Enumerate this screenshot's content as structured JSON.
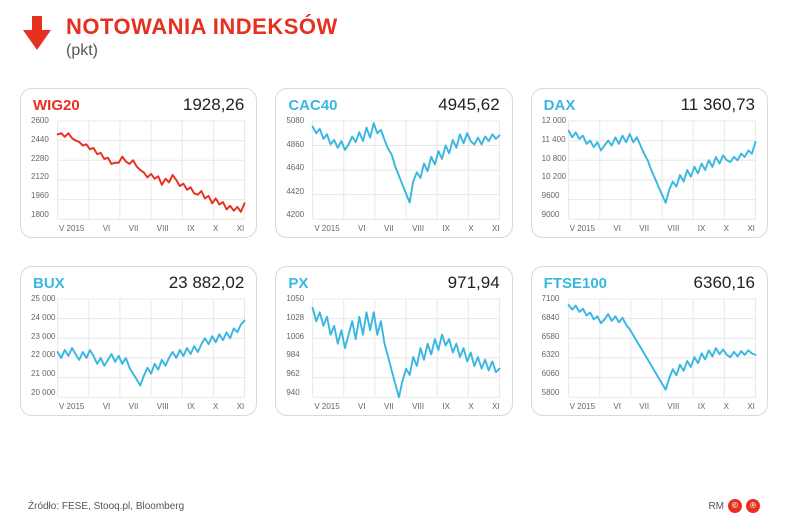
{
  "header": {
    "title": "NOTOWANIA INDEKSÓW",
    "subtitle": "(pkt)",
    "title_color": "#e63020",
    "title_fontsize": 22,
    "subtitle_color": "#555555",
    "arrow_color": "#e63020"
  },
  "layout": {
    "cols": 3,
    "rows": 2,
    "card_bg": "#ffffff",
    "card_border": "#d9d9d9",
    "card_radius": 12,
    "grid_color": "#e7e7e7",
    "axis_text_color": "#666666",
    "axis_fontsize": 8
  },
  "x_axis": {
    "labels": [
      "V 2015",
      "VI",
      "VII",
      "VIII",
      "IX",
      "X",
      "XI"
    ]
  },
  "charts": [
    {
      "name": "WIG20",
      "value": "1928,26",
      "name_color": "#e63020",
      "line_color": "#e63020",
      "line_width": 2,
      "ylim": [
        1800,
        2600
      ],
      "yticks": [
        2600,
        2440,
        2280,
        2120,
        1960,
        1800
      ],
      "data": [
        2490,
        2500,
        2470,
        2500,
        2460,
        2440,
        2430,
        2400,
        2410,
        2370,
        2380,
        2330,
        2340,
        2290,
        2300,
        2250,
        2260,
        2260,
        2310,
        2270,
        2250,
        2280,
        2230,
        2200,
        2180,
        2140,
        2170,
        2130,
        2150,
        2080,
        2130,
        2100,
        2160,
        2120,
        2070,
        2090,
        2040,
        2060,
        2010,
        2000,
        2030,
        1970,
        1990,
        1930,
        1970,
        1920,
        1940,
        1880,
        1910,
        1870,
        1900,
        1860,
        1930
      ]
    },
    {
      "name": "CAC40",
      "value": "4945,62",
      "name_color": "#3ab7e0",
      "line_color": "#3ab7e0",
      "line_width": 2,
      "ylim": [
        4200,
        5080
      ],
      "yticks": [
        5080,
        4860,
        4640,
        4420,
        4200
      ],
      "data": [
        5030,
        4970,
        5010,
        4920,
        4960,
        4870,
        4910,
        4840,
        4900,
        4820,
        4870,
        4940,
        4890,
        4980,
        4900,
        5020,
        4930,
        5060,
        4970,
        5000,
        4910,
        4830,
        4780,
        4670,
        4590,
        4510,
        4430,
        4350,
        4540,
        4620,
        4570,
        4700,
        4630,
        4760,
        4690,
        4810,
        4740,
        4860,
        4790,
        4910,
        4840,
        4960,
        4880,
        4970,
        4900,
        4870,
        4930,
        4870,
        4940,
        4900,
        4960,
        4920,
        4950
      ]
    },
    {
      "name": "DAX",
      "value": "11 360,73",
      "name_color": "#3ab7e0",
      "line_color": "#3ab7e0",
      "line_width": 2,
      "ylim": [
        9000,
        12000
      ],
      "yticks": [
        12000,
        11400,
        10800,
        10200,
        9600,
        9000
      ],
      "data": [
        11700,
        11500,
        11650,
        11450,
        11550,
        11300,
        11400,
        11200,
        11350,
        11100,
        11250,
        11400,
        11250,
        11500,
        11300,
        11550,
        11350,
        11600,
        11350,
        11500,
        11250,
        11000,
        10800,
        10500,
        10250,
        10000,
        9750,
        9500,
        9900,
        10150,
        10000,
        10350,
        10150,
        10500,
        10300,
        10600,
        10400,
        10700,
        10500,
        10800,
        10600,
        10900,
        10700,
        10950,
        10800,
        10750,
        10900,
        10800,
        11000,
        10900,
        11100,
        11000,
        11360
      ]
    },
    {
      "name": "BUX",
      "value": "23 882,02",
      "name_color": "#3ab7e0",
      "line_color": "#3ab7e0",
      "line_width": 2,
      "ylim": [
        20000,
        25000
      ],
      "yticks": [
        25000,
        24000,
        23000,
        22000,
        21000,
        20000
      ],
      "data": [
        22300,
        22000,
        22400,
        22100,
        22500,
        22200,
        21900,
        22300,
        22000,
        22400,
        22100,
        21700,
        22000,
        21600,
        21900,
        22200,
        21800,
        22100,
        21700,
        22000,
        21500,
        21200,
        20900,
        20600,
        21100,
        21500,
        21200,
        21700,
        21400,
        21900,
        21600,
        22000,
        22300,
        22000,
        22400,
        22100,
        22500,
        22200,
        22600,
        22300,
        22700,
        23000,
        22700,
        23100,
        22800,
        23200,
        22900,
        23300,
        23000,
        23500,
        23300,
        23700,
        23900
      ]
    },
    {
      "name": "PX",
      "value": "971,94",
      "name_color": "#3ab7e0",
      "line_color": "#3ab7e0",
      "line_width": 2,
      "ylim": [
        940,
        1050
      ],
      "yticks": [
        1050,
        1028,
        1006,
        984,
        962,
        940
      ],
      "data": [
        1040,
        1025,
        1035,
        1020,
        1030,
        1010,
        1020,
        1000,
        1015,
        995,
        1010,
        1025,
        1005,
        1030,
        1010,
        1035,
        1015,
        1035,
        1010,
        1025,
        1000,
        985,
        970,
        955,
        940,
        958,
        972,
        965,
        985,
        975,
        995,
        982,
        1000,
        988,
        1005,
        993,
        1010,
        998,
        1005,
        990,
        1000,
        985,
        995,
        980,
        990,
        975,
        985,
        972,
        982,
        970,
        980,
        968,
        972
      ]
    },
    {
      "name": "FTSE100",
      "value": "6360,16",
      "name_color": "#3ab7e0",
      "line_color": "#3ab7e0",
      "line_width": 2,
      "ylim": [
        5800,
        7100
      ],
      "yticks": [
        7100,
        6840,
        6580,
        6320,
        6060,
        5800
      ],
      "data": [
        7020,
        6960,
        7010,
        6930,
        6970,
        6880,
        6920,
        6830,
        6870,
        6780,
        6830,
        6900,
        6810,
        6870,
        6790,
        6850,
        6760,
        6700,
        6620,
        6540,
        6460,
        6380,
        6300,
        6220,
        6140,
        6060,
        5980,
        5900,
        6050,
        6170,
        6090,
        6230,
        6150,
        6280,
        6200,
        6330,
        6250,
        6380,
        6300,
        6420,
        6340,
        6450,
        6370,
        6430,
        6360,
        6330,
        6400,
        6340,
        6410,
        6360,
        6420,
        6380,
        6360
      ]
    }
  ],
  "footer": {
    "source": "Źródło: FESE, Stooq.pl, Bloomberg",
    "author": "RM",
    "badges": [
      "©",
      "℗"
    ]
  }
}
